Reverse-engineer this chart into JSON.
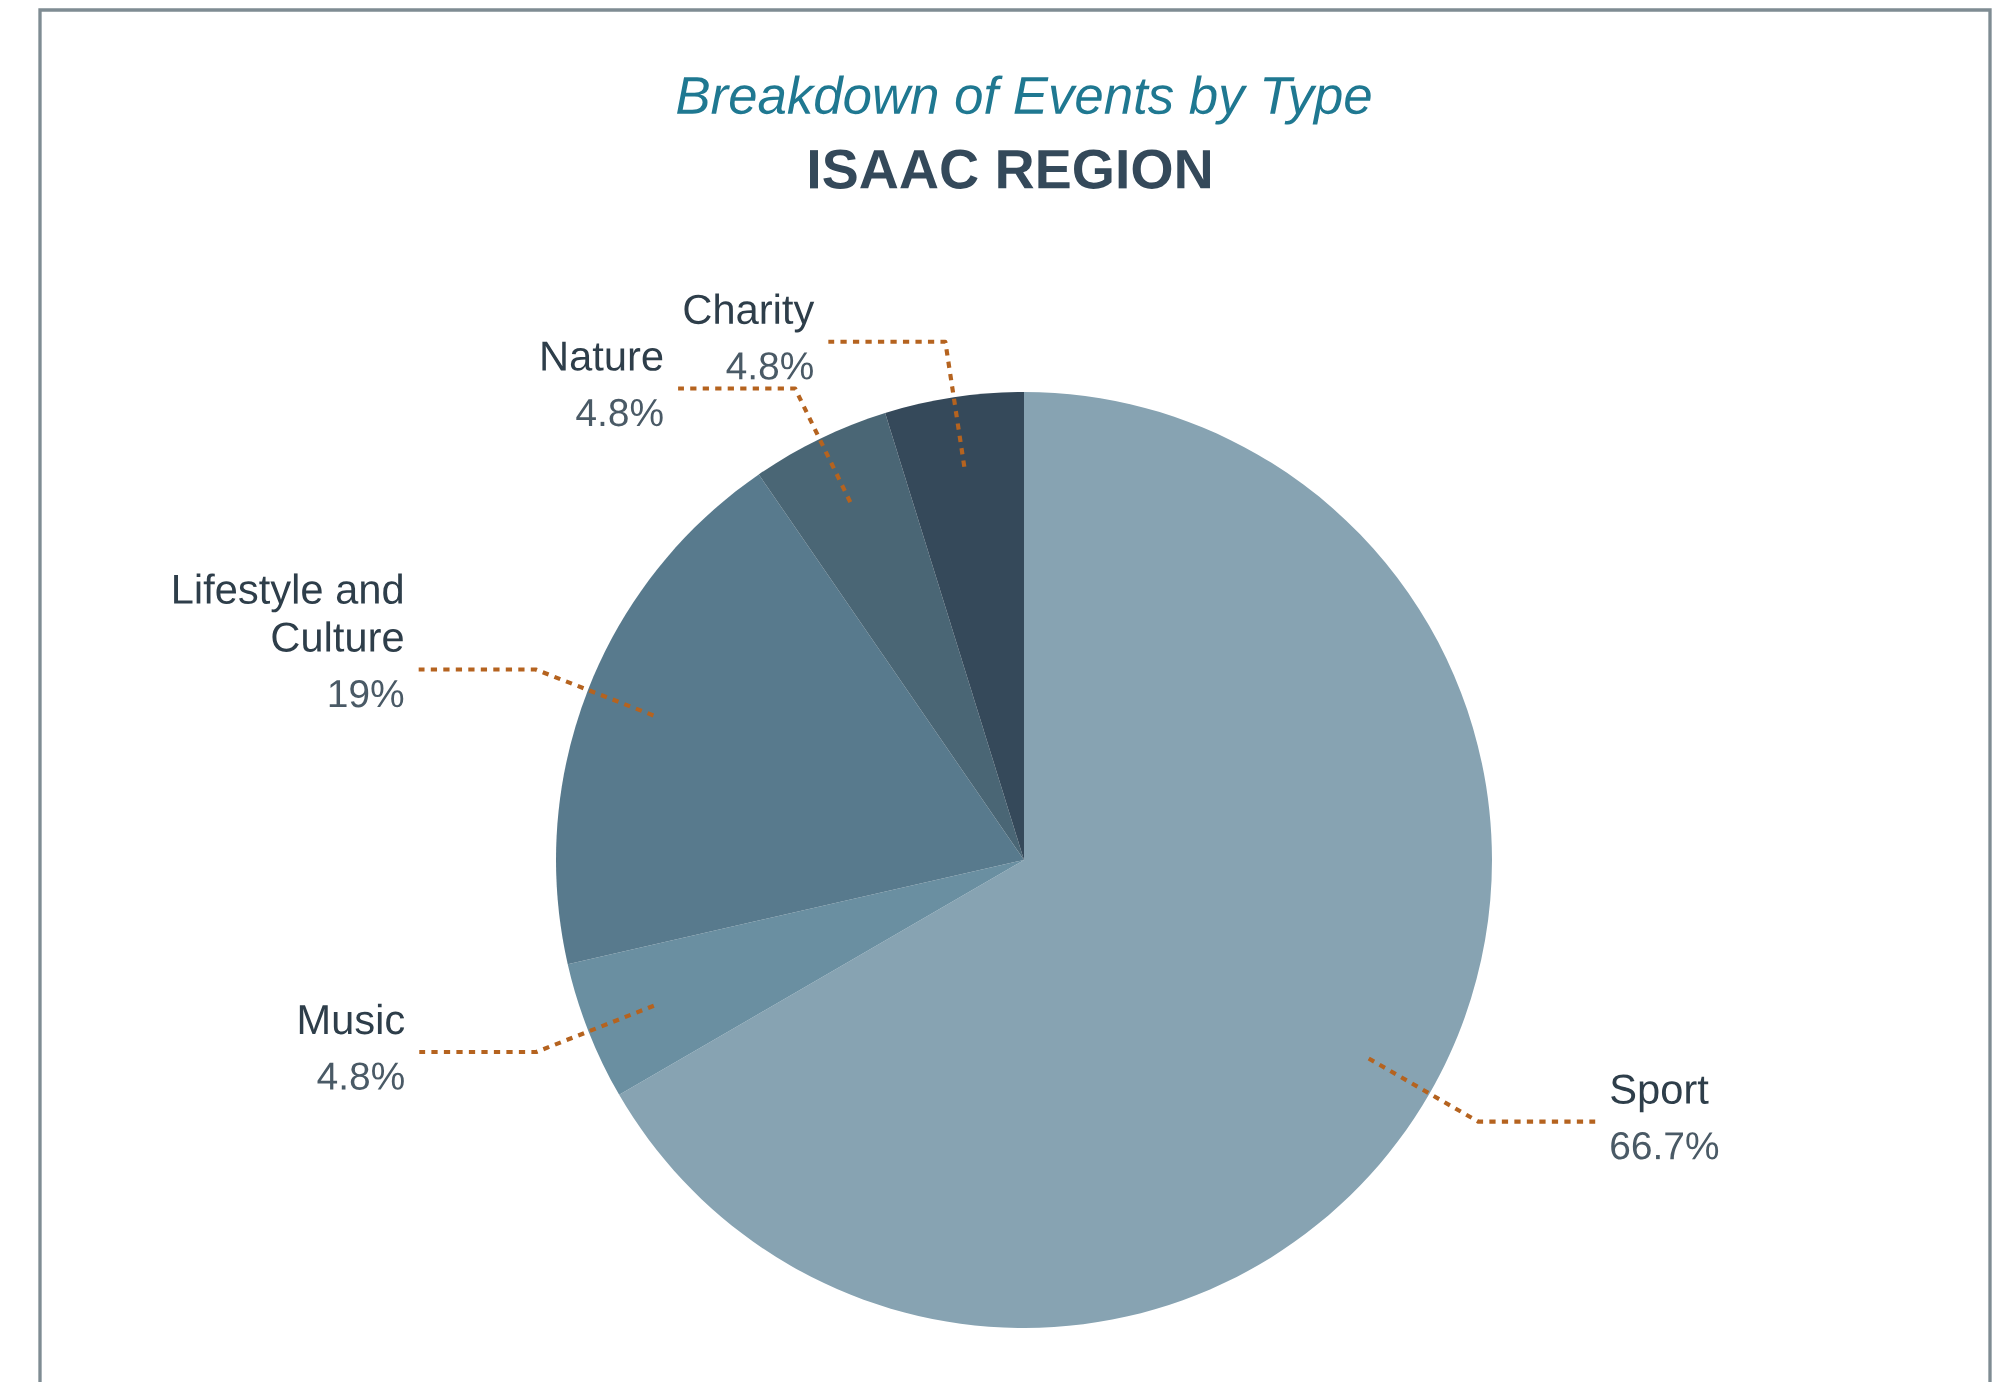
{
  "chart_data": {
    "type": "pie",
    "title": "Breakdown of Events by Type",
    "subtitle": "ISAAC REGION",
    "categories": [
      "Sport",
      "Music",
      "Lifestyle and\nCulture",
      "Nature",
      "Charity"
    ],
    "values": [
      66.7,
      4.8,
      19,
      4.8,
      4.8
    ],
    "colors": [
      "#87a3b2",
      "#6a8fa1",
      "#587a8d",
      "#4a6675",
      "#35495a"
    ],
    "value_labels": [
      "66.7%",
      "4.8%",
      "19%",
      "4.8%",
      "4.8%"
    ]
  }
}
